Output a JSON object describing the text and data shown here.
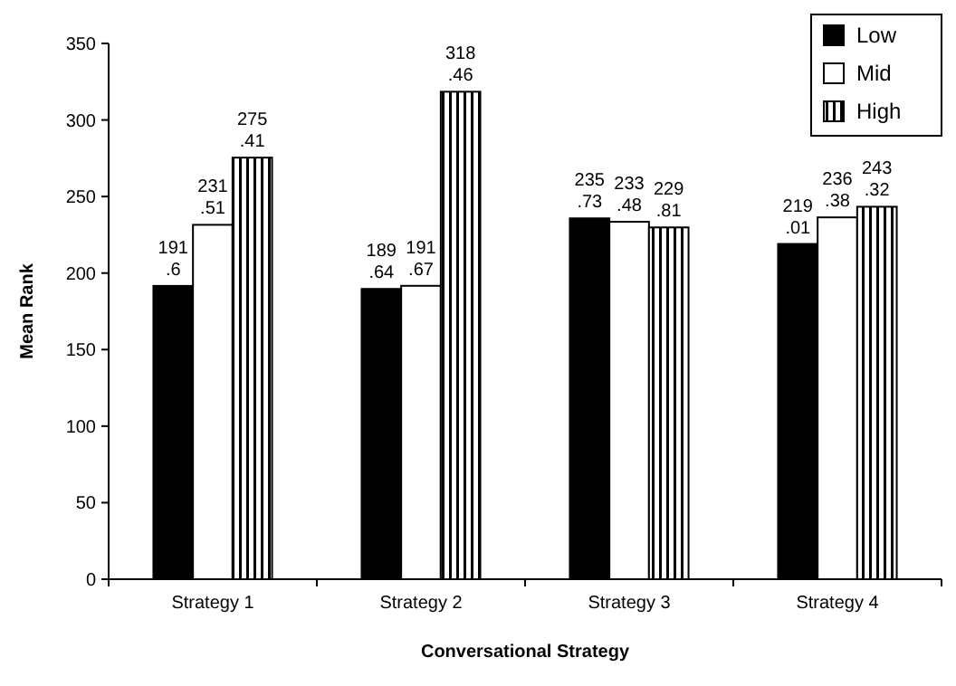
{
  "chart_data": {
    "type": "bar",
    "xlabel": "Conversational Strategy",
    "ylabel": "Mean Rank",
    "categories": [
      "Strategy 1",
      "Strategy 2",
      "Strategy 3",
      "Strategy 4"
    ],
    "series": [
      {
        "name": "Low",
        "color": "#000000",
        "values": [
          191.6,
          189.64,
          235.73,
          219.01
        ]
      },
      {
        "name": "Mid",
        "color": "#ffffff",
        "values": [
          231.51,
          191.67,
          233.48,
          236.38
        ]
      },
      {
        "name": "High",
        "color": "#000000",
        "values": [
          275.41,
          318.46,
          229.81,
          243.32
        ]
      }
    ],
    "ylim": [
      0,
      350
    ],
    "yticks": [
      0,
      50,
      100,
      150,
      200,
      250,
      300,
      350
    ],
    "grid": false,
    "legend": "top right",
    "data_labels": true
  }
}
